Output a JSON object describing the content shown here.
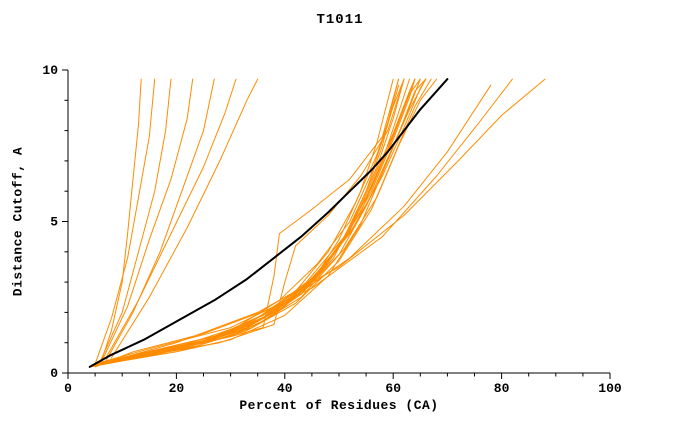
{
  "chart_data": {
    "type": "line",
    "title": "T1011",
    "xlabel": "Percent of Residues (CA)",
    "ylabel": "Distance Cutoff, A",
    "xlim": [
      0,
      100
    ],
    "ylim": [
      0,
      10
    ],
    "xticks": [
      0,
      20,
      40,
      60,
      80,
      100
    ],
    "yticks": [
      0,
      5,
      10
    ],
    "x_minor_step": 5,
    "y_minor_step": 1,
    "grid": false,
    "legend": "none",
    "colors": {
      "model_lines": "#FF8C00",
      "reference_line": "#000000",
      "background": "#FFFFFF",
      "axes": "#000000"
    },
    "series": [
      {
        "name": "orange-01",
        "color": "#FF8C00",
        "width": 1,
        "points": [
          [
            6,
            0.3
          ],
          [
            8,
            1.4
          ],
          [
            10,
            3.0
          ],
          [
            11,
            4.6
          ],
          [
            12,
            6.4
          ],
          [
            13,
            8.2
          ],
          [
            13.5,
            9.7
          ]
        ]
      },
      {
        "name": "orange-02",
        "color": "#FF8C00",
        "width": 1,
        "points": [
          [
            5,
            0.3
          ],
          [
            8,
            1.8
          ],
          [
            11,
            3.8
          ],
          [
            13,
            5.8
          ],
          [
            15,
            7.8
          ],
          [
            16,
            9.7
          ]
        ]
      },
      {
        "name": "orange-03",
        "color": "#FF8C00",
        "width": 1,
        "points": [
          [
            6,
            0.4
          ],
          [
            10,
            2.0
          ],
          [
            13,
            4.0
          ],
          [
            16,
            6.0
          ],
          [
            18,
            8.0
          ],
          [
            19,
            9.7
          ]
        ]
      },
      {
        "name": "orange-04",
        "color": "#FF8C00",
        "width": 1,
        "points": [
          [
            6,
            0.3
          ],
          [
            11,
            2.2
          ],
          [
            15,
            4.4
          ],
          [
            19,
            6.4
          ],
          [
            22,
            8.4
          ],
          [
            23,
            9.7
          ]
        ]
      },
      {
        "name": "orange-05",
        "color": "#FF8C00",
        "width": 1,
        "points": [
          [
            7,
            0.4
          ],
          [
            12,
            2.0
          ],
          [
            17,
            4.0
          ],
          [
            21,
            6.0
          ],
          [
            25,
            8.0
          ],
          [
            27,
            9.7
          ]
        ]
      },
      {
        "name": "orange-06",
        "color": "#FF8C00",
        "width": 1,
        "points": [
          [
            7,
            0.5
          ],
          [
            13,
            2.4
          ],
          [
            19,
            4.6
          ],
          [
            25,
            6.8
          ],
          [
            29,
            8.6
          ],
          [
            31,
            9.7
          ]
        ]
      },
      {
        "name": "orange-07",
        "color": "#FF8C00",
        "width": 1,
        "points": [
          [
            8,
            0.5
          ],
          [
            15,
            2.5
          ],
          [
            22,
            4.8
          ],
          [
            28,
            7.0
          ],
          [
            33,
            9.0
          ],
          [
            35,
            9.7
          ]
        ]
      },
      {
        "name": "orange-08",
        "color": "#FF8C00",
        "width": 1,
        "points": [
          [
            4,
            0.2
          ],
          [
            12,
            0.5
          ],
          [
            22,
            0.9
          ],
          [
            32,
            1.4
          ],
          [
            40,
            2.2
          ],
          [
            46,
            3.2
          ],
          [
            51,
            4.5
          ],
          [
            55,
            6.0
          ],
          [
            58,
            7.5
          ],
          [
            60,
            9.0
          ],
          [
            61,
            9.7
          ]
        ]
      },
      {
        "name": "orange-09",
        "color": "#FF8C00",
        "width": 1,
        "points": [
          [
            5,
            0.3
          ],
          [
            14,
            0.6
          ],
          [
            25,
            1.0
          ],
          [
            35,
            1.6
          ],
          [
            43,
            2.6
          ],
          [
            49,
            3.8
          ],
          [
            53,
            5.2
          ],
          [
            57,
            6.8
          ],
          [
            60,
            8.4
          ],
          [
            62,
            9.7
          ]
        ]
      },
      {
        "name": "orange-10",
        "color": "#FF8C00",
        "width": 1,
        "points": [
          [
            4,
            0.2
          ],
          [
            10,
            0.5
          ],
          [
            20,
            0.8
          ],
          [
            30,
            1.2
          ],
          [
            38,
            1.9
          ],
          [
            45,
            3.0
          ],
          [
            50,
            4.4
          ],
          [
            54,
            6.0
          ],
          [
            57,
            7.6
          ],
          [
            59,
            9.0
          ],
          [
            60,
            9.7
          ]
        ]
      },
      {
        "name": "orange-11",
        "color": "#FF8C00",
        "width": 1,
        "points": [
          [
            6,
            0.3
          ],
          [
            15,
            0.7
          ],
          [
            26,
            1.1
          ],
          [
            36,
            1.8
          ],
          [
            44,
            2.8
          ],
          [
            50,
            4.2
          ],
          [
            55,
            5.8
          ],
          [
            59,
            7.4
          ],
          [
            62,
            8.8
          ],
          [
            64,
            9.7
          ]
        ]
      },
      {
        "name": "orange-12",
        "color": "#FF8C00",
        "width": 1,
        "points": [
          [
            4,
            0.2
          ],
          [
            11,
            0.5
          ],
          [
            21,
            0.9
          ],
          [
            31,
            1.5
          ],
          [
            39,
            2.4
          ],
          [
            46,
            3.6
          ],
          [
            52,
            5.0
          ],
          [
            56,
            6.6
          ],
          [
            59,
            8.2
          ],
          [
            61,
            9.5
          ]
        ]
      },
      {
        "name": "orange-13",
        "color": "#FF8C00",
        "width": 1,
        "points": [
          [
            5,
            0.25
          ],
          [
            13,
            0.6
          ],
          [
            24,
            1.0
          ],
          [
            34,
            1.7
          ],
          [
            42,
            2.7
          ],
          [
            48,
            4.0
          ],
          [
            53,
            5.6
          ],
          [
            57,
            7.2
          ],
          [
            60,
            8.8
          ],
          [
            62,
            9.7
          ]
        ]
      },
      {
        "name": "orange-14",
        "color": "#FF8C00",
        "width": 1,
        "points": [
          [
            4,
            0.2
          ],
          [
            12,
            0.5
          ],
          [
            23,
            0.9
          ],
          [
            33,
            1.5
          ],
          [
            41,
            2.4
          ],
          [
            48,
            3.7
          ],
          [
            54,
            5.3
          ],
          [
            58,
            7.0
          ],
          [
            61,
            8.6
          ],
          [
            63,
            9.7
          ]
        ]
      },
      {
        "name": "orange-15",
        "color": "#FF8C00",
        "width": 1,
        "points": [
          [
            5,
            0.3
          ],
          [
            16,
            0.7
          ],
          [
            28,
            1.2
          ],
          [
            38,
            2.0
          ],
          [
            46,
            3.2
          ],
          [
            52,
            4.7
          ],
          [
            56,
            6.3
          ],
          [
            60,
            7.9
          ],
          [
            63,
            9.3
          ],
          [
            64,
            9.7
          ]
        ]
      },
      {
        "name": "orange-16",
        "color": "#FF8C00",
        "width": 1,
        "points": [
          [
            4,
            0.2
          ],
          [
            10,
            0.4
          ],
          [
            20,
            0.7
          ],
          [
            30,
            1.1
          ],
          [
            40,
            1.9
          ],
          [
            48,
            3.2
          ],
          [
            54,
            4.9
          ],
          [
            58,
            6.6
          ],
          [
            62,
            8.3
          ],
          [
            65,
            9.7
          ]
        ]
      },
      {
        "name": "orange-17",
        "color": "#FF8C00",
        "width": 1,
        "points": [
          [
            6,
            0.3
          ],
          [
            14,
            0.6
          ],
          [
            26,
            1.1
          ],
          [
            36,
            1.9
          ],
          [
            44,
            3.0
          ],
          [
            51,
            4.5
          ],
          [
            56,
            6.1
          ],
          [
            60,
            7.8
          ],
          [
            63,
            9.2
          ],
          [
            65,
            9.7
          ]
        ]
      },
      {
        "name": "orange-18",
        "color": "#FF8C00",
        "width": 1,
        "points": [
          [
            4,
            0.2
          ],
          [
            13,
            0.5
          ],
          [
            24,
            0.9
          ],
          [
            34,
            1.5
          ],
          [
            43,
            2.5
          ],
          [
            50,
            3.9
          ],
          [
            55,
            5.5
          ],
          [
            59,
            7.1
          ],
          [
            63,
            8.7
          ],
          [
            66,
            9.7
          ]
        ]
      },
      {
        "name": "orange-19",
        "color": "#FF8C00",
        "width": 1,
        "points": [
          [
            5,
            0.3
          ],
          [
            15,
            0.7
          ],
          [
            27,
            1.2
          ],
          [
            37,
            2.0
          ],
          [
            45,
            3.1
          ],
          [
            52,
            4.6
          ],
          [
            57,
            6.2
          ],
          [
            61,
            7.9
          ],
          [
            64,
            9.3
          ],
          [
            66,
            9.7
          ]
        ]
      },
      {
        "name": "orange-20",
        "color": "#FF8C00",
        "width": 1,
        "points": [
          [
            4,
            0.2
          ],
          [
            11,
            0.5
          ],
          [
            22,
            0.8
          ],
          [
            33,
            1.4
          ],
          [
            42,
            2.3
          ],
          [
            50,
            3.7
          ],
          [
            56,
            5.4
          ],
          [
            60,
            7.1
          ],
          [
            64,
            8.8
          ],
          [
            67,
            9.7
          ]
        ]
      },
      {
        "name": "orange-21",
        "color": "#FF8C00",
        "width": 1,
        "points": [
          [
            6,
            0.35
          ],
          [
            17,
            0.8
          ],
          [
            29,
            1.3
          ],
          [
            39,
            2.2
          ],
          [
            47,
            3.4
          ],
          [
            53,
            4.9
          ],
          [
            58,
            6.5
          ],
          [
            62,
            8.1
          ],
          [
            65,
            9.4
          ],
          [
            66,
            9.7
          ]
        ]
      },
      {
        "name": "orange-22",
        "color": "#FF8C00",
        "width": 1,
        "points": [
          [
            4,
            0.2
          ],
          [
            12,
            0.5
          ],
          [
            23,
            0.9
          ],
          [
            34,
            1.6
          ],
          [
            43,
            2.6
          ],
          [
            51,
            4.1
          ],
          [
            57,
            5.8
          ],
          [
            61,
            7.5
          ],
          [
            65,
            9.0
          ],
          [
            68,
            9.7
          ]
        ]
      },
      {
        "name": "orange-23",
        "color": "#FF8C00",
        "width": 1,
        "points": [
          [
            5,
            0.3
          ],
          [
            18,
            0.8
          ],
          [
            30,
            1.2
          ],
          [
            36,
            1.5
          ],
          [
            38,
            3.2
          ],
          [
            39,
            4.6
          ],
          [
            45,
            5.4
          ],
          [
            52,
            6.4
          ],
          [
            58,
            7.8
          ],
          [
            61,
            9.7
          ]
        ]
      },
      {
        "name": "orange-24",
        "color": "#FF8C00",
        "width": 1,
        "points": [
          [
            4,
            0.2
          ],
          [
            15,
            0.6
          ],
          [
            28,
            1.0
          ],
          [
            38,
            1.6
          ],
          [
            40,
            3.0
          ],
          [
            42,
            4.2
          ],
          [
            48,
            5.2
          ],
          [
            54,
            6.5
          ],
          [
            59,
            8.0
          ],
          [
            62,
            9.7
          ]
        ]
      },
      {
        "name": "orange-25",
        "color": "#FF8C00",
        "width": 1,
        "points": [
          [
            5,
            0.25
          ],
          [
            14,
            0.6
          ],
          [
            25,
            1.0
          ],
          [
            35,
            1.7
          ],
          [
            44,
            2.9
          ],
          [
            51,
            4.4
          ],
          [
            56,
            6.0
          ],
          [
            60,
            7.7
          ],
          [
            63,
            9.1
          ],
          [
            64,
            9.7
          ]
        ]
      },
      {
        "name": "orange-26",
        "color": "#FF8C00",
        "width": 1,
        "points": [
          [
            5,
            0.3
          ],
          [
            15,
            0.8
          ],
          [
            30,
            1.5
          ],
          [
            45,
            2.8
          ],
          [
            58,
            4.5
          ],
          [
            68,
            6.5
          ],
          [
            76,
            8.3
          ],
          [
            82,
            9.7
          ]
        ]
      },
      {
        "name": "orange-27",
        "color": "#FF8C00",
        "width": 1,
        "points": [
          [
            6,
            0.3
          ],
          [
            20,
            1.0
          ],
          [
            35,
            2.0
          ],
          [
            50,
            3.5
          ],
          [
            62,
            5.2
          ],
          [
            72,
            7.0
          ],
          [
            80,
            8.5
          ],
          [
            88,
            9.7
          ]
        ]
      },
      {
        "name": "orange-28",
        "color": "#FF8C00",
        "width": 1,
        "points": [
          [
            5,
            0.2
          ],
          [
            12,
            0.7
          ],
          [
            25,
            1.3
          ],
          [
            40,
            2.3
          ],
          [
            52,
            3.8
          ],
          [
            62,
            5.5
          ],
          [
            70,
            7.3
          ],
          [
            78,
            9.5
          ]
        ]
      },
      {
        "name": "black-reference",
        "color": "#000000",
        "width": 2,
        "points": [
          [
            4,
            0.2
          ],
          [
            8,
            0.6
          ],
          [
            14,
            1.1
          ],
          [
            20,
            1.7
          ],
          [
            27,
            2.4
          ],
          [
            33,
            3.1
          ],
          [
            38,
            3.8
          ],
          [
            43,
            4.5
          ],
          [
            48,
            5.3
          ],
          [
            52,
            6.0
          ],
          [
            56,
            6.7
          ],
          [
            59,
            7.3
          ],
          [
            62,
            8.0
          ],
          [
            65,
            8.7
          ],
          [
            68,
            9.3
          ],
          [
            70,
            9.7
          ]
        ]
      }
    ]
  }
}
